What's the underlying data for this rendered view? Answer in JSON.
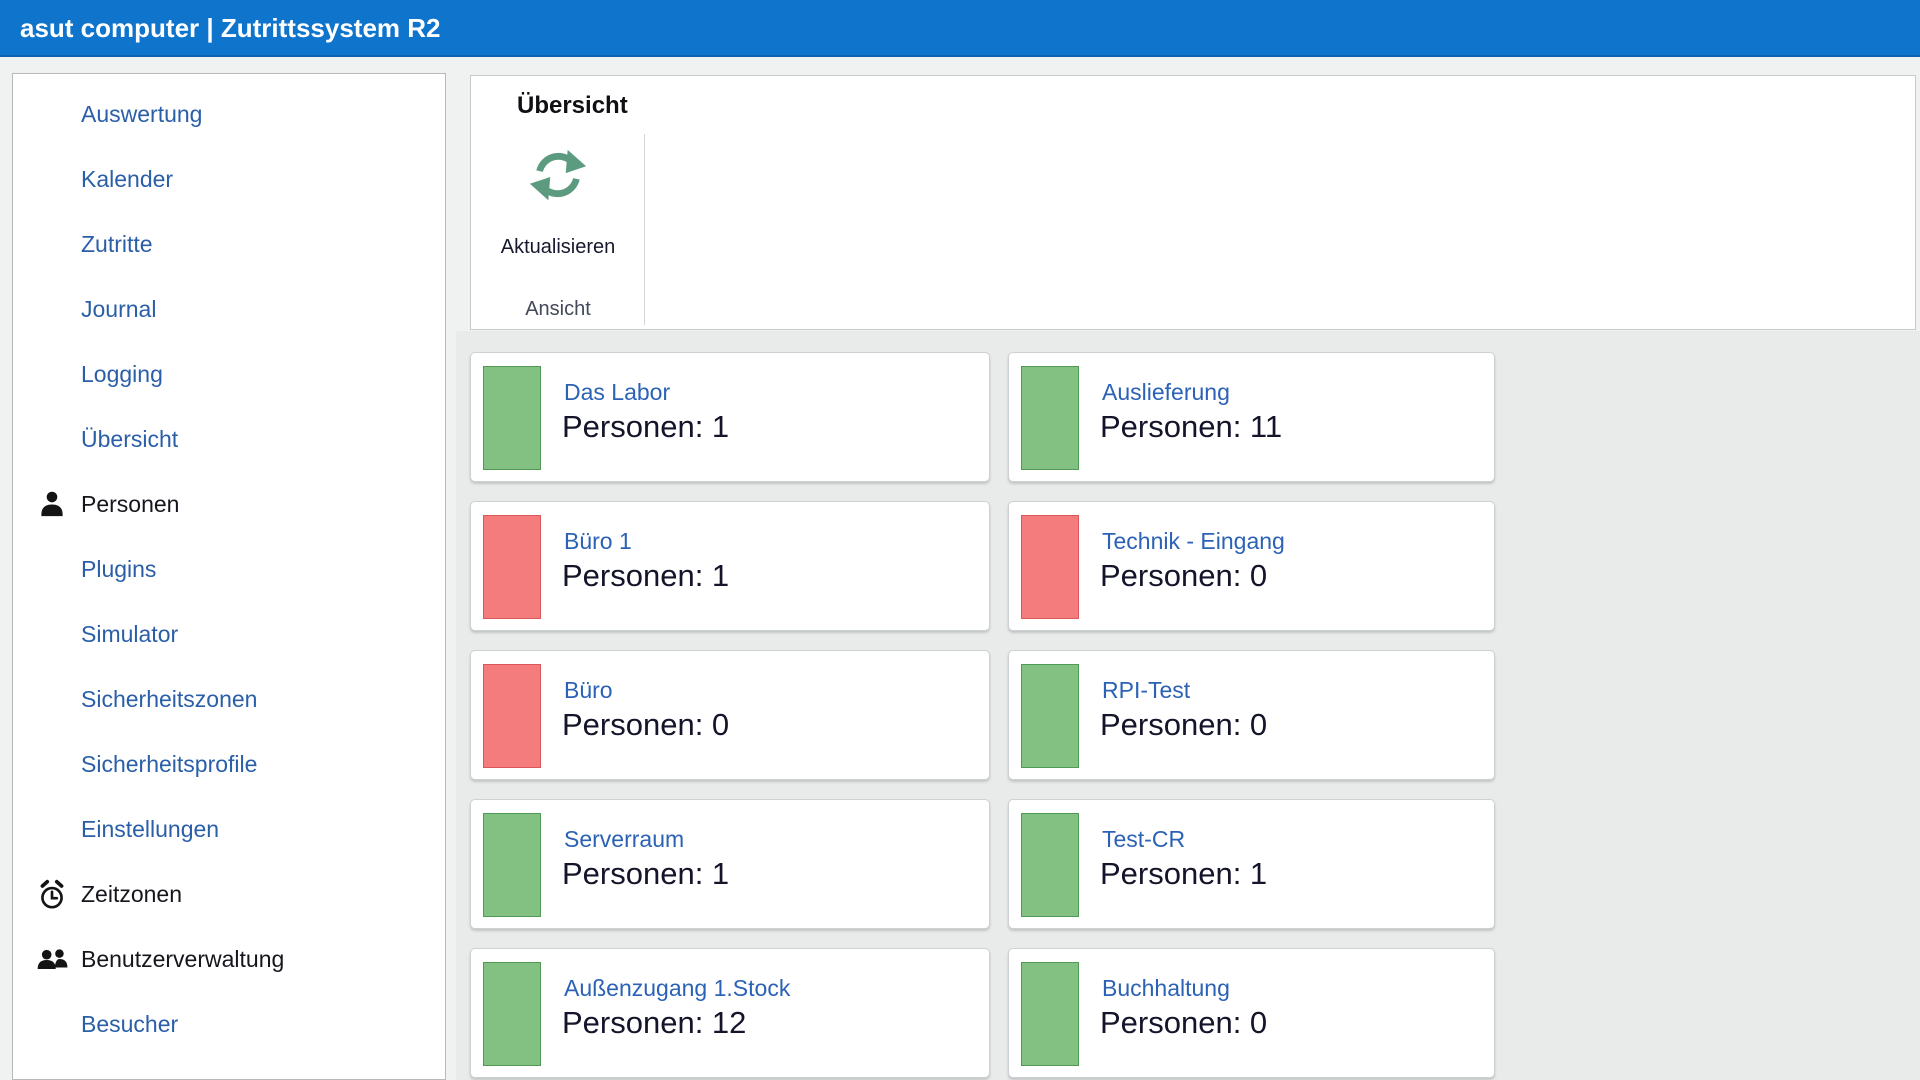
{
  "title_bar": {
    "title": "asut computer | Zutrittssystem R2"
  },
  "sidebar": {
    "items": [
      {
        "label": "Auswertung",
        "type": "link"
      },
      {
        "label": "Kalender",
        "type": "link"
      },
      {
        "label": "Zutritte",
        "type": "link"
      },
      {
        "label": "Journal",
        "type": "link"
      },
      {
        "label": "Logging",
        "type": "link"
      },
      {
        "label": "Übersicht",
        "type": "link"
      },
      {
        "label": "Personen",
        "type": "section",
        "icon": "person-icon"
      },
      {
        "label": "Plugins",
        "type": "link"
      },
      {
        "label": "Simulator",
        "type": "link"
      },
      {
        "label": "Sicherheitszonen",
        "type": "link"
      },
      {
        "label": "Sicherheitsprofile",
        "type": "link"
      },
      {
        "label": "Einstellungen",
        "type": "link"
      },
      {
        "label": "Zeitzonen",
        "type": "section",
        "icon": "alarm-clock-icon"
      },
      {
        "label": "Benutzerverwaltung",
        "type": "section",
        "icon": "users-icon"
      },
      {
        "label": "Besucher",
        "type": "link"
      }
    ]
  },
  "ribbon": {
    "tab_label": "Übersicht",
    "group_label": "Ansicht",
    "refresh_button": {
      "label": "Aktualisieren",
      "icon": "refresh-icon"
    }
  },
  "overview": {
    "persons_label": "Personen",
    "cards": [
      {
        "name": "Das Labor",
        "persons": 1,
        "status": "green"
      },
      {
        "name": "Auslieferung",
        "persons": 11,
        "status": "green"
      },
      {
        "name": "Büro 1",
        "persons": 1,
        "status": "red"
      },
      {
        "name": "Technik - Eingang",
        "persons": 0,
        "status": "red"
      },
      {
        "name": "Büro",
        "persons": 0,
        "status": "red"
      },
      {
        "name": "RPI-Test",
        "persons": 0,
        "status": "green"
      },
      {
        "name": "Serverraum",
        "persons": 1,
        "status": "green"
      },
      {
        "name": "Test-CR",
        "persons": 1,
        "status": "green"
      },
      {
        "name": "Außenzugang 1.Stock",
        "persons": 12,
        "status": "green"
      },
      {
        "name": "Buchhaltung",
        "persons": 0,
        "status": "green"
      }
    ]
  },
  "colors": {
    "titlebar_blue": "#0f74cc",
    "sidebar_link_blue": "#2a5fa8",
    "card_title_blue": "#2b62b5",
    "green_fill": "#83c183",
    "green_border": "#4f9b55",
    "red_fill": "#f57c7c",
    "red_border": "#dc5858",
    "refresh_icon_green": "#5c9b7f"
  }
}
